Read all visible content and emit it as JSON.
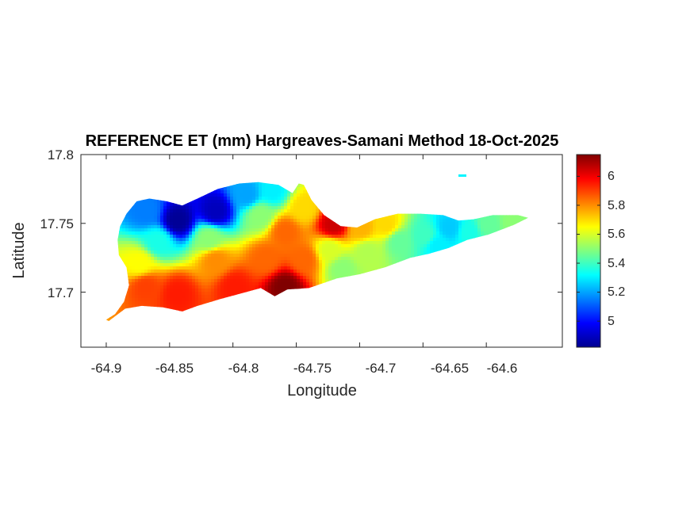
{
  "map": {
    "title": "REFERENCE ET (mm) Hargreaves-Samani Method  18-Oct-2025",
    "xlabel": "Longitude",
    "ylabel": "Latitude",
    "x_ticks": [
      "-64.9",
      "-64.85",
      "-64.8",
      "-64.75",
      "-64.7",
      "-64.65",
      "-64.6"
    ],
    "y_ticks": [
      "17.8",
      "17.75",
      "17.7"
    ],
    "colorbar_ticks": [
      "6",
      "5.8",
      "5.6",
      "5.4",
      "5.2",
      "5"
    ],
    "colormap": "jet"
  },
  "chart_data": {
    "type": "heatmap",
    "title": "REFERENCE ET (mm) Hargreaves-Samani Method  18-Oct-2025",
    "xlabel": "Longitude",
    "ylabel": "Latitude",
    "xlim": [
      -64.92,
      -64.54
    ],
    "ylim": [
      17.66,
      17.8
    ],
    "x_tick_values": [
      -64.9,
      -64.85,
      -64.8,
      -64.75,
      -64.7,
      -64.65,
      -64.6
    ],
    "y_tick_values": [
      17.8,
      17.75,
      17.7
    ],
    "colorbar": {
      "colormap": "jet",
      "range": [
        4.82,
        6.15
      ],
      "tick_values": [
        6,
        5.8,
        5.6,
        5.4,
        5.2,
        5
      ]
    },
    "outline": [
      [
        -64.9,
        17.68
      ],
      [
        -64.893,
        17.684
      ],
      [
        -64.886,
        17.693
      ],
      [
        -64.882,
        17.705
      ],
      [
        -64.884,
        17.718
      ],
      [
        -64.89,
        17.727
      ],
      [
        -64.891,
        17.738
      ],
      [
        -64.889,
        17.748
      ],
      [
        -64.884,
        17.757
      ],
      [
        -64.876,
        17.766
      ],
      [
        -64.866,
        17.768
      ],
      [
        -64.852,
        17.766
      ],
      [
        -64.84,
        17.763
      ],
      [
        -64.828,
        17.768
      ],
      [
        -64.812,
        17.775
      ],
      [
        -64.795,
        17.779
      ],
      [
        -64.78,
        17.78
      ],
      [
        -64.764,
        17.778
      ],
      [
        -64.753,
        17.772
      ],
      [
        -64.748,
        17.779
      ],
      [
        -64.744,
        17.778
      ],
      [
        -64.738,
        17.767
      ],
      [
        -64.728,
        17.756
      ],
      [
        -64.715,
        17.748
      ],
      [
        -64.702,
        17.747
      ],
      [
        -64.688,
        17.753
      ],
      [
        -64.67,
        17.757
      ],
      [
        -64.652,
        17.757
      ],
      [
        -64.634,
        17.756
      ],
      [
        -64.622,
        17.752
      ],
      [
        -64.61,
        17.753
      ],
      [
        -64.595,
        17.756
      ],
      [
        -64.575,
        17.756
      ],
      [
        -64.567,
        17.754
      ],
      [
        -64.578,
        17.749
      ],
      [
        -64.598,
        17.742
      ],
      [
        -64.615,
        17.738
      ],
      [
        -64.63,
        17.732
      ],
      [
        -64.645,
        17.728
      ],
      [
        -64.66,
        17.725
      ],
      [
        -64.68,
        17.718
      ],
      [
        -64.7,
        17.713
      ],
      [
        -64.718,
        17.71
      ],
      [
        -64.74,
        17.703
      ],
      [
        -64.757,
        17.702
      ],
      [
        -64.767,
        17.697
      ],
      [
        -64.778,
        17.703
      ],
      [
        -64.79,
        17.7
      ],
      [
        -64.81,
        17.695
      ],
      [
        -64.828,
        17.69
      ],
      [
        -64.84,
        17.686
      ],
      [
        -64.855,
        17.689
      ],
      [
        -64.872,
        17.69
      ],
      [
        -64.885,
        17.688
      ],
      [
        -64.898,
        17.679
      ]
    ],
    "islet": [
      [
        -64.622,
        17.785
      ],
      [
        -64.617,
        17.785
      ]
    ],
    "value_anchors": [
      {
        "lon": -64.845,
        "lat": 17.753,
        "et": 4.85
      },
      {
        "lon": -64.815,
        "lat": 17.76,
        "et": 4.9
      },
      {
        "lon": -64.87,
        "lat": 17.76,
        "et": 5.15
      },
      {
        "lon": -64.79,
        "lat": 17.772,
        "et": 5.2
      },
      {
        "lon": -64.77,
        "lat": 17.775,
        "et": 5.3
      },
      {
        "lon": -64.86,
        "lat": 17.738,
        "et": 5.35
      },
      {
        "lon": -64.82,
        "lat": 17.74,
        "et": 5.5
      },
      {
        "lon": -64.78,
        "lat": 17.757,
        "et": 5.5
      },
      {
        "lon": -64.875,
        "lat": 17.722,
        "et": 5.65
      },
      {
        "lon": -64.87,
        "lat": 17.705,
        "et": 5.9
      },
      {
        "lon": -64.845,
        "lat": 17.7,
        "et": 5.95
      },
      {
        "lon": -64.8,
        "lat": 17.705,
        "et": 5.95
      },
      {
        "lon": -64.815,
        "lat": 17.724,
        "et": 5.8
      },
      {
        "lon": -64.775,
        "lat": 17.725,
        "et": 5.85
      },
      {
        "lon": -64.76,
        "lat": 17.705,
        "et": 6.15
      },
      {
        "lon": -64.76,
        "lat": 17.745,
        "et": 5.85
      },
      {
        "lon": -64.745,
        "lat": 17.762,
        "et": 5.7
      },
      {
        "lon": -64.745,
        "lat": 17.725,
        "et": 5.85
      },
      {
        "lon": -64.722,
        "lat": 17.75,
        "et": 6.05
      },
      {
        "lon": -64.725,
        "lat": 17.732,
        "et": 5.6
      },
      {
        "lon": -64.715,
        "lat": 17.718,
        "et": 5.5
      },
      {
        "lon": -64.695,
        "lat": 17.73,
        "et": 5.55
      },
      {
        "lon": -64.7,
        "lat": 17.748,
        "et": 5.75
      },
      {
        "lon": -64.68,
        "lat": 17.75,
        "et": 5.7
      },
      {
        "lon": -64.67,
        "lat": 17.738,
        "et": 5.45
      },
      {
        "lon": -64.65,
        "lat": 17.742,
        "et": 5.4
      },
      {
        "lon": -64.64,
        "lat": 17.735,
        "et": 5.3
      },
      {
        "lon": -64.63,
        "lat": 17.748,
        "et": 5.25
      },
      {
        "lon": -64.615,
        "lat": 17.745,
        "et": 5.35
      },
      {
        "lon": -64.6,
        "lat": 17.75,
        "et": 5.45
      },
      {
        "lon": -64.58,
        "lat": 17.752,
        "et": 5.5
      }
    ]
  }
}
